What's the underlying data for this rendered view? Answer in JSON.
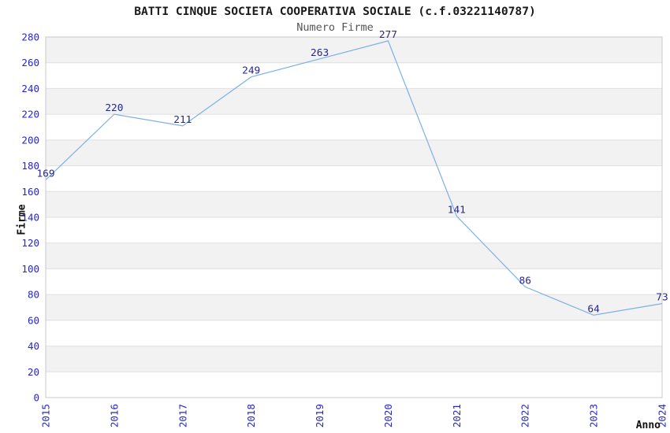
{
  "figure": {
    "title": "BATTI CINQUE SOCIETA COOPERATIVA SOCIALE (c.f.03221140787)",
    "subtitle": "Numero Firme"
  },
  "chart_data": {
    "type": "line",
    "title": "BATTI CINQUE SOCIETA COOPERATIVA SOCIALE (c.f.03221140787)",
    "subtitle": "Numero Firme",
    "xlabel": "Anno",
    "ylabel": "Firme",
    "x": [
      "2015",
      "2016",
      "2017",
      "2018",
      "2019",
      "2020",
      "2021",
      "2022",
      "2023",
      "2024"
    ],
    "values": [
      169,
      220,
      211,
      249,
      263,
      277,
      141,
      86,
      64,
      73
    ],
    "ylim": [
      0,
      280
    ],
    "ytick_step": 20,
    "yticks": [
      0,
      20,
      40,
      60,
      80,
      100,
      120,
      140,
      160,
      180,
      200,
      220,
      240,
      260,
      280
    ],
    "grid": "horizontal gridline every 20 units with alternating white/gray bands",
    "legend": "none",
    "point_labels_shown": true,
    "xtick_rotation_deg": 90
  },
  "colors": {
    "line": "#7CB0E8",
    "tick_label": "#2626CC",
    "point_label": "#26268C",
    "band_gray": "#F2F2F2",
    "band_white": "#FFFFFF",
    "gridline": "#DFDFDF",
    "frame": "#C8C8C8",
    "title_text": "#1A1A1A",
    "subtitle_text": "#555555",
    "axis_label_text": "#111111",
    "background": "#FFFFFF"
  }
}
